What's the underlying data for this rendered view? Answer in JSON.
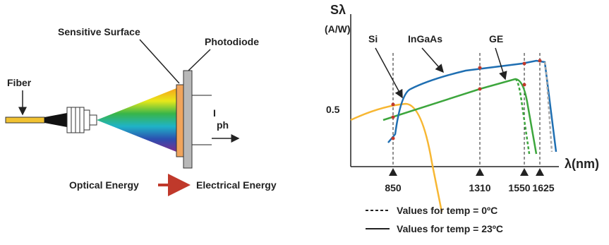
{
  "left_diagram": {
    "fiber": "Fiber",
    "sensitive_surface": "Sensitive Surface",
    "photodiode": "Photodiode",
    "current_symbol": "I",
    "current_subscript": "ph",
    "optical_energy": "Optical Energy",
    "electrical_energy": "Electrical Energy"
  },
  "right_chart": {
    "y_axis_label": "Sλ",
    "y_axis_unit": "(A/W)",
    "y_tick": 0.5,
    "x_axis_label": "λ(nm)",
    "x_ticks": [
      850,
      1310,
      1550,
      1625
    ],
    "curve_labels": [
      "Si",
      "InGaAs",
      "GE"
    ],
    "legend": [
      "Values for temp = 0ºC",
      "Values for temp = 23ºC"
    ]
  }
}
